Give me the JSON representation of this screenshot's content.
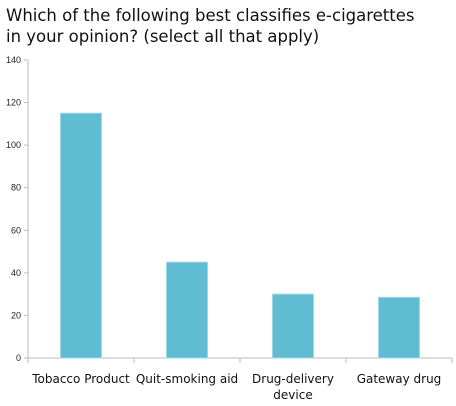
{
  "chart_data": {
    "type": "bar",
    "title_lines": [
      "Which of the following best classifies e-cigarettes",
      "in your opinion? (select all that apply)"
    ],
    "categories": [
      [
        "Tobacco Product"
      ],
      [
        "Quit-smoking aid"
      ],
      [
        "Drug-delivery",
        "device"
      ],
      [
        "Gateway drug"
      ]
    ],
    "values": [
      115,
      45,
      30,
      28.5
    ],
    "xlabel": "",
    "ylabel": "",
    "ylim": [
      0,
      140
    ],
    "yticks": [
      0,
      20,
      40,
      60,
      80,
      100,
      120,
      140
    ],
    "grid": false,
    "legend": "none",
    "bar_color": "#5fbcd3",
    "bar_edge_color": "#9fd8e6",
    "axis_color": "#bdbdbd"
  }
}
